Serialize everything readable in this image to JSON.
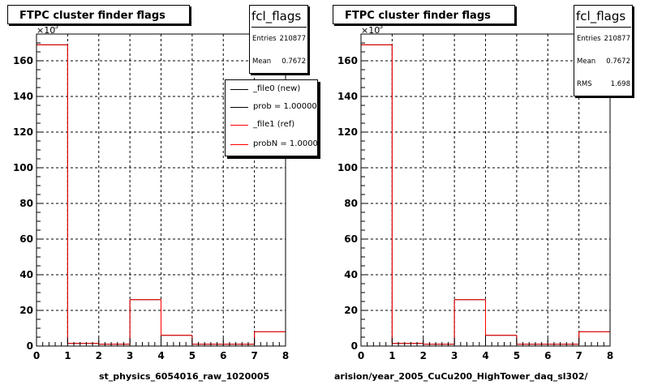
{
  "panels": [
    {
      "title": "FTPC cluster finder flags",
      "stats": {
        "name": "fcl_flags",
        "rows": [
          {
            "label": "Entries",
            "value": "210877"
          },
          {
            "label": "Mean",
            "value": "0.7672"
          }
        ]
      },
      "legend": {
        "entries": [
          {
            "label": "_file0 (new)",
            "color": "#000000"
          },
          {
            "label": "prob = 1.000000",
            "color": "#000000"
          },
          {
            "label": "_file1 (ref)",
            "color": "#ff0000"
          },
          {
            "label": "probN = 1.000000",
            "color": "#ff0000"
          }
        ]
      },
      "footer": "st_physics_6054016_raw_1020005"
    },
    {
      "title": "FTPC cluster finder flags",
      "stats": {
        "name": "fcl_flags",
        "rows": [
          {
            "label": "Entries",
            "value": "210877"
          },
          {
            "label": "Mean",
            "value": "0.7672"
          },
          {
            "label": "RMS",
            "value": "1.698"
          }
        ]
      },
      "footer": "arision/year_2005_CuCu200_HighTower_daq_sl302/"
    }
  ],
  "chart_data": [
    {
      "type": "bar",
      "histogram": true,
      "title": "FTPC cluster finder flags",
      "x_bin_edges": [
        0,
        1,
        2,
        3,
        4,
        5,
        6,
        7,
        8
      ],
      "xlim": [
        0,
        8
      ],
      "x_ticks": [
        "0",
        "1",
        "2",
        "3",
        "4",
        "5",
        "6",
        "7",
        "8"
      ],
      "ylim": [
        0,
        175
      ],
      "y_ticks": [
        "0",
        "20",
        "40",
        "60",
        "80",
        "100",
        "120",
        "140",
        "160"
      ],
      "y_exponent_label": "×10",
      "y_exponent_power": "3",
      "grid": true,
      "series": [
        {
          "name": "_file0 (new)",
          "color": "#000000",
          "values": [
            169,
            1.5,
            1,
            26,
            6,
            1,
            1,
            8
          ]
        },
        {
          "name": "_file1 (ref)",
          "color": "#ff0000",
          "values": [
            169,
            1.5,
            1,
            26,
            6,
            1,
            1,
            8
          ]
        }
      ]
    },
    {
      "type": "bar",
      "histogram": true,
      "title": "FTPC cluster finder flags",
      "x_bin_edges": [
        0,
        1,
        2,
        3,
        4,
        5,
        6,
        7,
        8
      ],
      "xlim": [
        0,
        8
      ],
      "x_ticks": [
        "0",
        "1",
        "2",
        "3",
        "4",
        "5",
        "6",
        "7",
        "8"
      ],
      "ylim": [
        0,
        175
      ],
      "y_ticks": [
        "0",
        "20",
        "40",
        "60",
        "80",
        "100",
        "120",
        "140",
        "160"
      ],
      "y_exponent_label": "×10",
      "y_exponent_power": "3",
      "grid": true,
      "series": [
        {
          "color": "#000000",
          "values": [
            169,
            1.5,
            1,
            26,
            6,
            1,
            1,
            8
          ]
        },
        {
          "color": "#ff0000",
          "values": [
            169,
            1.5,
            1,
            26,
            6,
            1,
            1,
            8
          ]
        }
      ]
    }
  ]
}
